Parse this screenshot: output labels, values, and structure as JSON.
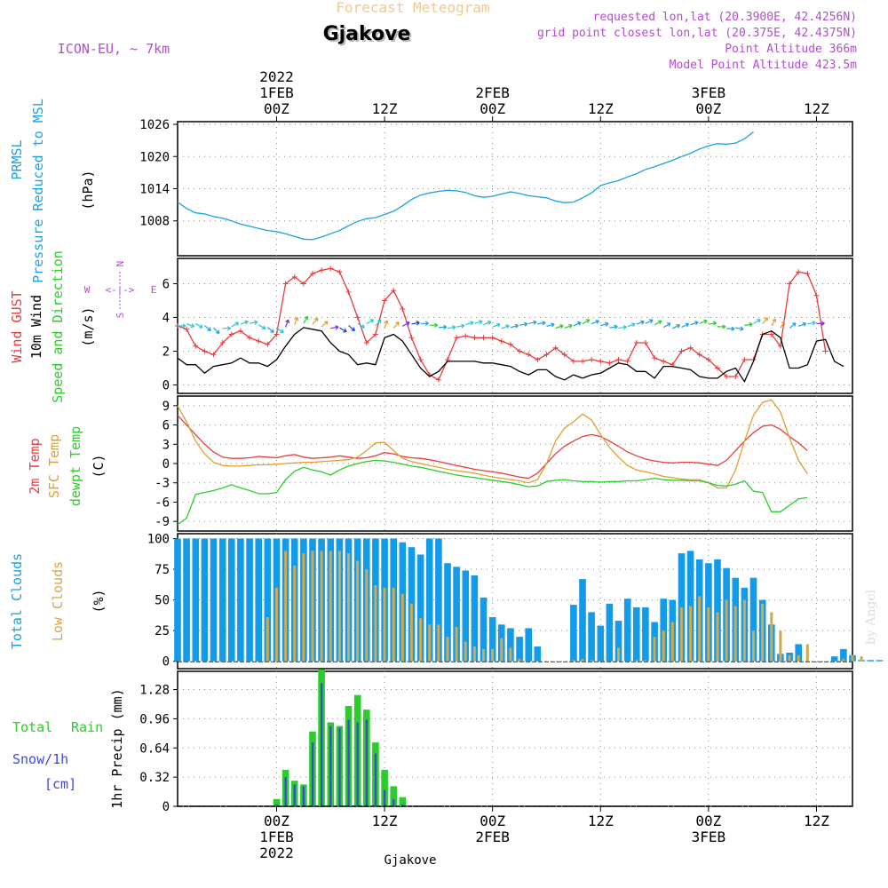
{
  "header": {
    "product": "Forecast Meteogram",
    "location": "Gjakove",
    "model": "ICON-EU, ~ 7km",
    "requested": "requested lon,lat (20.3900E, 42.4256N)",
    "grid": "grid point closest lon,lat (20.375E, 42.4375N)",
    "point_alt": "Point Altitude 366m",
    "model_alt": "Model Point Altitude 423.5m",
    "watermark": "by Angel",
    "bottom_title": "Gjakove"
  },
  "time_axis": {
    "hours": 64,
    "ticks": [
      {
        "h": 11,
        "label": "00Z",
        "date": "1FEB",
        "year": "2022"
      },
      {
        "h": 23,
        "label": "12Z",
        "date": "",
        "year": ""
      },
      {
        "h": 35,
        "label": "00Z",
        "date": "2FEB",
        "year": ""
      },
      {
        "h": 47,
        "label": "12Z",
        "date": "",
        "year": ""
      },
      {
        "h": 59,
        "label": "00Z",
        "date": "3FEB",
        "year": ""
      },
      {
        "h": 71,
        "label": "12Z",
        "date": "",
        "year": ""
      }
    ]
  },
  "panel_labels": {
    "pressure": [
      "PRMSL",
      "Pressure Reduced to MSL",
      "(hPa)"
    ],
    "wind": [
      "Wind GUST",
      "10m Wind",
      "Speed and Direction",
      "(m/s)"
    ],
    "compass": [
      "N",
      "S",
      "W",
      "E"
    ],
    "temp": [
      "2m Temp",
      "SFC Temp",
      "dewpt Temp",
      "(C)"
    ],
    "clouds": [
      "Total Clouds",
      "Low Clouds",
      "(%)"
    ],
    "precip": [
      "Total",
      "Rain",
      "Snow/1h",
      "[cm]",
      "1hr Precip (mm)"
    ]
  },
  "colors": {
    "pressure": "#1ba0e2",
    "gust": "#e83c3c",
    "wind": "#000000",
    "t2m": "#e83c3c",
    "sfc": "#e0a030",
    "dew": "#2ccc2c",
    "total_cloud": "#129be8",
    "low_cloud": "#d4a84c",
    "rain": "#2ccc2c",
    "snow": "#3a4ad8",
    "label_purple": "#b44ccf",
    "header_orange": "#f2c98a"
  },
  "chart_data": [
    {
      "type": "line",
      "name": "pressure",
      "title": "PRMSL Pressure Reduced to MSL",
      "ylabel": "(hPa)",
      "yticks": [
        1008,
        1014,
        1020,
        1026
      ],
      "ylim": [
        1001.5,
        1026.5
      ],
      "x_start": 0,
      "step": 1,
      "series": [
        {
          "name": "PRMSL",
          "values": [
            1011.5,
            1010.3,
            1009.5,
            1009.3,
            1008.8,
            1008.5,
            1008.0,
            1007.4,
            1007.0,
            1006.6,
            1006.2,
            1006.0,
            1005.6,
            1005.1,
            1004.6,
            1004.5,
            1005.0,
            1005.6,
            1006.2,
            1007.1,
            1007.9,
            1008.4,
            1008.6,
            1009.2,
            1009.8,
            1010.8,
            1012.0,
            1012.8,
            1013.2,
            1013.5,
            1013.7,
            1013.6,
            1013.3,
            1012.7,
            1012.4,
            1012.6,
            1013.0,
            1013.4,
            1013.1,
            1012.7,
            1012.5,
            1012.3,
            1011.7,
            1011.4,
            1011.5,
            1012.3,
            1013.2,
            1014.6,
            1015.1,
            1015.5,
            1016.2,
            1016.8,
            1017.6,
            1018.1,
            1018.7,
            1019.3,
            1020.0,
            1020.6,
            1021.4,
            1022.0,
            1022.4,
            1022.3,
            1022.5,
            1023.3,
            1024.6
          ]
        }
      ]
    },
    {
      "type": "line",
      "name": "wind",
      "title": "Wind GUST / 10m Wind Speed and Direction",
      "ylabel": "(m/s)",
      "yticks": [
        0,
        2,
        4,
        6
      ],
      "ylim": [
        -0.5,
        7.5
      ],
      "x_start": 0,
      "step": 1,
      "series": [
        {
          "name": "Wind GUST",
          "values": [
            3.5,
            3.3,
            2.3,
            2.0,
            1.8,
            2.5,
            3.0,
            3.2,
            2.8,
            2.6,
            2.4,
            3.0,
            6.0,
            6.4,
            6.0,
            6.6,
            6.8,
            6.9,
            6.7,
            5.5,
            4.0,
            2.5,
            3.0,
            5.0,
            5.6,
            4.5,
            2.8,
            1.5,
            0.6,
            0.3,
            1.5,
            2.8,
            2.9,
            2.8,
            2.8,
            2.8,
            2.6,
            2.4,
            2.0,
            1.8,
            1.5,
            1.8,
            2.2,
            1.8,
            1.4,
            1.4,
            1.5,
            1.4,
            1.3,
            1.5,
            1.4,
            2.5,
            2.5,
            1.6,
            1.4,
            1.2,
            2.0,
            2.2,
            1.8,
            1.5,
            1.0,
            0.5,
            0.5,
            1.5,
            1.5,
            3.0,
            3.0,
            2.3,
            6.0,
            6.7,
            6.6,
            5.3,
            2.0
          ]
        },
        {
          "name": "10m Wind",
          "values": [
            1.6,
            1.2,
            1.2,
            0.7,
            1.1,
            1.2,
            1.3,
            1.6,
            1.3,
            1.3,
            1.1,
            1.5,
            2.3,
            3.0,
            3.4,
            3.3,
            3.2,
            2.5,
            2.0,
            1.8,
            1.2,
            1.3,
            1.2,
            2.8,
            3.0,
            2.6,
            1.8,
            1.0,
            0.5,
            0.8,
            1.4,
            1.4,
            1.4,
            1.4,
            1.3,
            1.3,
            1.2,
            1.1,
            0.8,
            0.6,
            0.9,
            0.9,
            0.5,
            0.3,
            0.6,
            0.4,
            0.6,
            0.7,
            1.0,
            1.3,
            1.2,
            0.8,
            0.8,
            0.4,
            1.1,
            1.1,
            1.0,
            0.9,
            0.5,
            0.4,
            0.4,
            0.8,
            1.0,
            0.2,
            1.4,
            3.0,
            3.2,
            2.8,
            1.0,
            1.0,
            1.2,
            2.6,
            2.7,
            1.4,
            1.1
          ]
        },
        {
          "name": "10m Wind Direction (deg)",
          "values": [
            270,
            290,
            300,
            310,
            315,
            270,
            240,
            250,
            260,
            300,
            310,
            300,
            200,
            200,
            210,
            220,
            230,
            260,
            300,
            310,
            300,
            240,
            220,
            200,
            220,
            240,
            260,
            270,
            270,
            265,
            260,
            260,
            255,
            255,
            250,
            250,
            250,
            255,
            260,
            260,
            260,
            255,
            250,
            250,
            245,
            240,
            250,
            255,
            260,
            260,
            250,
            250,
            245,
            240,
            240,
            245,
            245,
            250,
            250,
            260,
            270,
            275,
            280,
            260,
            240,
            220,
            210,
            210,
            230,
            250,
            260,
            270
          ]
        }
      ]
    },
    {
      "type": "line",
      "name": "temperature",
      "title": "2m Temp / SFC Temp / dewpt Temp",
      "ylabel": "(C)",
      "yticks": [
        -9,
        -6,
        -3,
        0,
        3,
        6,
        9
      ],
      "ylim": [
        -10.5,
        10.5
      ],
      "x_start": 0,
      "step": 1,
      "series": [
        {
          "name": "2m Temp",
          "values": [
            7.5,
            6.0,
            4.5,
            3.0,
            1.8,
            1.0,
            0.8,
            0.8,
            0.9,
            1.1,
            1.0,
            0.9,
            1.2,
            1.4,
            1.0,
            0.8,
            0.9,
            1.0,
            1.2,
            1.0,
            0.8,
            0.9,
            1.2,
            1.7,
            1.5,
            1.1,
            0.9,
            0.8,
            0.6,
            0.3,
            0.0,
            -0.3,
            -0.6,
            -0.9,
            -1.1,
            -1.3,
            -1.5,
            -1.8,
            -2.1,
            -2.3,
            -1.5,
            0.0,
            1.5,
            2.7,
            3.5,
            4.2,
            4.5,
            4.2,
            3.5,
            2.7,
            1.8,
            1.2,
            0.7,
            0.4,
            0.2,
            0.1,
            0.2,
            0.2,
            0.1,
            -0.1,
            -0.3,
            0.5,
            2.0,
            3.5,
            4.8,
            5.8,
            6.0,
            5.3,
            4.2,
            3.2,
            2.0
          ]
        },
        {
          "name": "SFC Temp",
          "values": [
            9.0,
            6.5,
            3.5,
            1.5,
            0.2,
            -0.3,
            -0.4,
            -0.4,
            -0.3,
            -0.2,
            -0.2,
            -0.1,
            0.0,
            0.1,
            0.2,
            0.2,
            0.3,
            0.4,
            0.5,
            0.6,
            1.0,
            2.0,
            3.2,
            3.3,
            2.0,
            0.8,
            0.3,
            0.0,
            -0.3,
            -0.6,
            -0.9,
            -1.1,
            -1.3,
            -1.5,
            -1.8,
            -2.1,
            -2.3,
            -2.5,
            -2.7,
            -3.0,
            -2.5,
            0.0,
            3.5,
            5.5,
            6.5,
            7.7,
            6.8,
            4.5,
            2.5,
            1.0,
            -0.3,
            -1.0,
            -1.3,
            -1.6,
            -2.0,
            -2.2,
            -2.4,
            -2.5,
            -2.5,
            -3.0,
            -3.8,
            -3.8,
            -1.0,
            3.5,
            7.5,
            9.5,
            9.9,
            8.0,
            4.0,
            0.5,
            -1.6
          ]
        },
        {
          "name": "dewpt Temp",
          "values": [
            -9.5,
            -8.5,
            -4.8,
            -4.5,
            -4.2,
            -3.8,
            -3.3,
            -3.8,
            -4.2,
            -4.7,
            -4.7,
            -4.5,
            -2.5,
            -1.2,
            -0.6,
            -1.0,
            -1.3,
            -1.8,
            -1.0,
            -0.4,
            0.0,
            0.3,
            0.5,
            0.4,
            0.2,
            -0.1,
            -0.4,
            -0.6,
            -0.9,
            -1.2,
            -1.5,
            -1.8,
            -2.0,
            -2.2,
            -2.4,
            -2.6,
            -2.8,
            -3.0,
            -3.3,
            -3.6,
            -3.5,
            -2.8,
            -2.6,
            -2.5,
            -2.7,
            -2.8,
            -2.8,
            -2.9,
            -2.8,
            -2.8,
            -2.7,
            -2.7,
            -2.5,
            -2.3,
            -2.5,
            -2.6,
            -2.6,
            -2.7,
            -2.7,
            -3.0,
            -3.4,
            -3.5,
            -3.2,
            -2.7,
            -4.3,
            -4.5,
            -7.5,
            -7.5,
            -6.5,
            -5.5,
            -5.3
          ]
        }
      ]
    },
    {
      "type": "bar",
      "name": "clouds",
      "title": "Total Clouds / Low Clouds",
      "ylabel": "(%)",
      "yticks": [
        0,
        25,
        50,
        75,
        100
      ],
      "ylim": [
        -6,
        104
      ],
      "x_start": 0,
      "step": 1,
      "series": [
        {
          "name": "Total Clouds",
          "values": [
            100,
            100,
            100,
            100,
            100,
            100,
            100,
            100,
            100,
            100,
            100,
            100,
            100,
            100,
            100,
            100,
            100,
            100,
            100,
            100,
            100,
            100,
            100,
            100,
            100,
            97,
            93,
            87,
            100,
            100,
            80,
            77,
            74,
            70,
            52,
            36,
            30,
            27,
            20,
            27,
            12,
            0,
            0,
            0,
            46,
            67,
            40,
            29,
            47,
            33,
            51,
            44,
            44,
            32,
            51,
            50,
            88,
            90,
            83,
            80,
            83,
            76,
            68,
            60,
            68,
            50,
            30,
            6,
            7,
            14,
            0,
            0,
            0,
            4,
            10,
            5,
            1,
            1,
            1
          ]
        },
        {
          "name": "Low Clouds",
          "values": [
            0,
            0,
            0,
            0,
            0,
            0,
            0,
            0,
            0,
            0,
            36,
            60,
            90,
            78,
            88,
            90,
            90,
            90,
            90,
            88,
            82,
            75,
            62,
            60,
            60,
            55,
            47,
            35,
            30,
            30,
            20,
            28,
            16,
            12,
            10,
            10,
            19,
            11,
            2,
            0,
            0,
            0,
            0,
            0,
            1,
            2,
            1,
            0,
            0,
            11,
            0,
            1,
            1,
            20,
            25,
            32,
            44,
            45,
            53,
            44,
            40,
            50,
            45,
            50,
            25,
            47,
            40,
            25,
            5,
            5,
            14,
            0,
            0,
            0,
            2,
            5,
            4,
            0,
            0
          ]
        }
      ]
    },
    {
      "type": "bar",
      "name": "precipitation",
      "title": "1hr Precip",
      "ylabel": "1hr Precip (mm)",
      "yticks": [
        0,
        0.32,
        0.64,
        0.96,
        1.28
      ],
      "ylim": [
        0,
        1.48
      ],
      "x_start": 11,
      "step": 1,
      "series": [
        {
          "name": "Total Rain",
          "values": [
            0.08,
            0.4,
            0.28,
            0.24,
            0.82,
            1.5,
            0.92,
            0.88,
            1.1,
            1.22,
            1.06,
            0.7,
            0.4,
            0.22,
            0.1
          ]
        },
        {
          "name": "Snow/1h",
          "values": [
            0.02,
            0.32,
            0.24,
            0.22,
            0.7,
            1.35,
            0.88,
            0.86,
            0.95,
            0.92,
            0.95,
            0.58,
            0.18,
            0.08,
            0.02
          ]
        }
      ]
    }
  ]
}
